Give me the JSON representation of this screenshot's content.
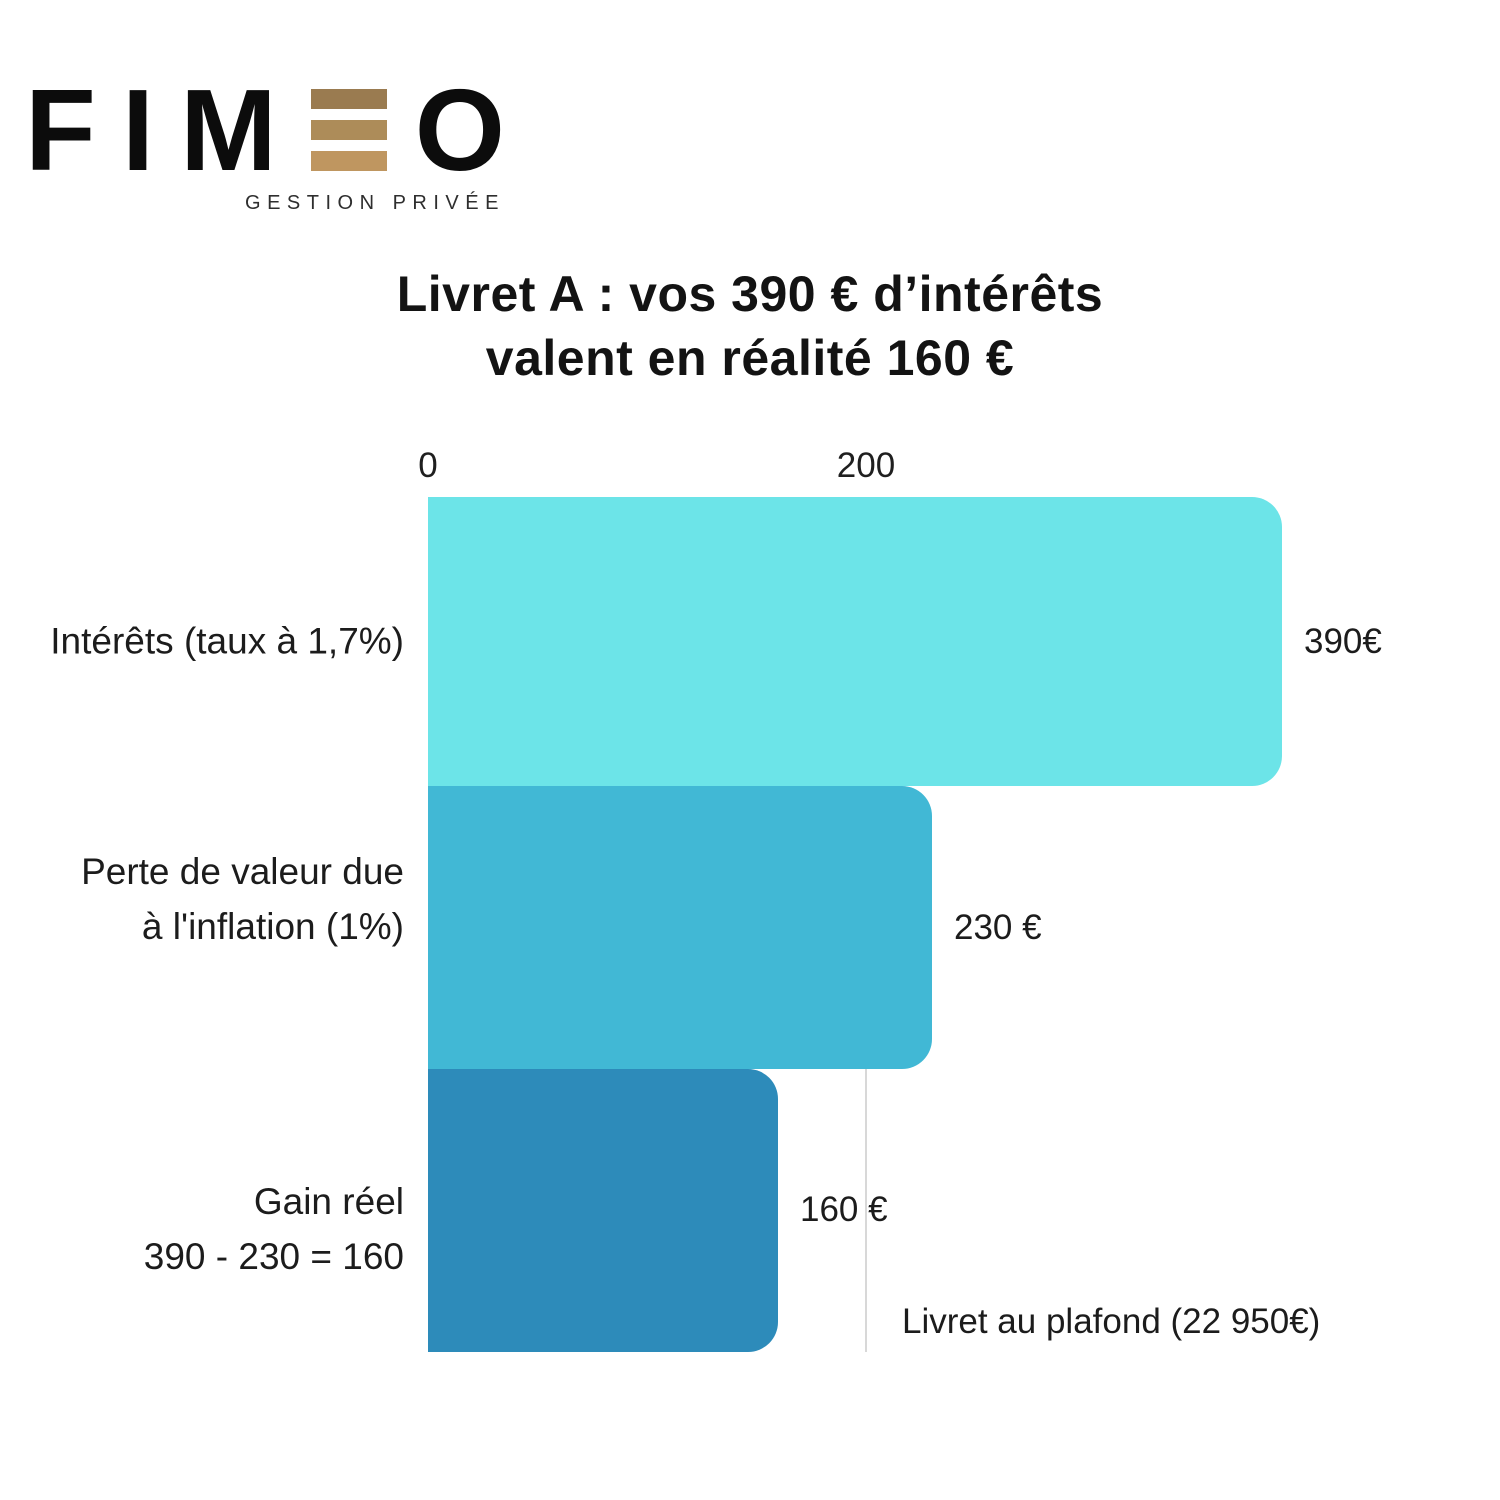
{
  "logo": {
    "word_start": "FIM",
    "word_end": "O",
    "tagline": "GESTION PRIVÉE",
    "e_bar_colors": [
      "#9a7b50",
      "#ad8c59",
      "#bf9660"
    ]
  },
  "title": {
    "line1": "Livret A : vos 390 € d’intérêts",
    "line2": "valent en réalité 160 €"
  },
  "chart_data": {
    "type": "bar",
    "orientation": "horizontal",
    "title": "Livret A : vos 390 € d’intérêts valent en réalité 160 €",
    "categories": [
      "Intérêts (taux à 1,7%)",
      "Perte de valeur due à l'inflation (1%)",
      "Gain réel 390 - 230 = 160"
    ],
    "category_lines": [
      [
        "Intérêts (taux à 1,7%)"
      ],
      [
        "Perte de valeur due",
        "à l'inflation (1%)"
      ],
      [
        "Gain réel",
        "390 - 230 = 160"
      ]
    ],
    "values": [
      390,
      230,
      160
    ],
    "value_labels": [
      "390€",
      "230 €",
      "160 €"
    ],
    "unit": "€",
    "ticks": [
      0,
      200
    ],
    "tick_labels": [
      "0",
      "200"
    ],
    "xlim": [
      0,
      400
    ],
    "gridline_at": 200,
    "grid": "single vertical gridline at 200, behind bars",
    "legend": false,
    "annotation": "Livret au plafond (22 950€)",
    "bar_colors": [
      "#6ce4e8",
      "#41b8d5",
      "#2d8bba"
    ],
    "text_color": "#1c1c1c",
    "gridline_color": "#d8d8d8"
  }
}
